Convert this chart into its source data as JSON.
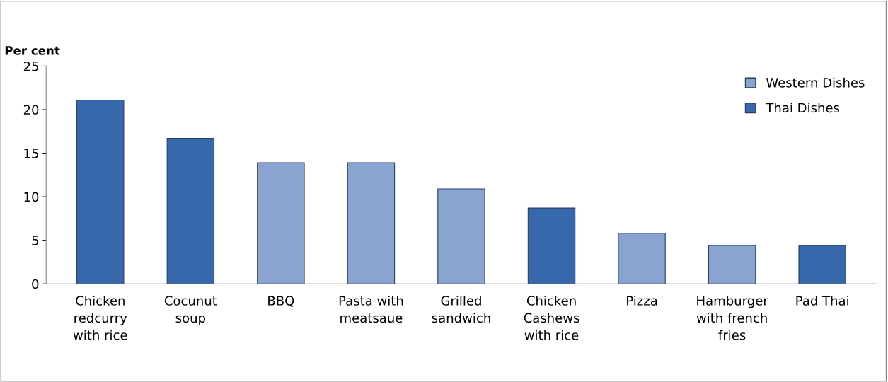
{
  "chart_data": {
    "type": "bar",
    "ylabel": "Per cent",
    "categories": [
      "Chicken redcurry with rice",
      "Cocunut soup",
      "BBQ",
      "Pasta with meatsaue",
      "Grilled sandwich",
      "Chicken Cashews with rice",
      "Pizza",
      "Hamburger with french fries",
      "Pad Thai"
    ],
    "series": [
      {
        "name": "Western Dishes",
        "color": "#8aa4d2",
        "values": [
          null,
          null,
          13.9,
          13.9,
          10.9,
          null,
          5.8,
          4.4,
          null
        ]
      },
      {
        "name": "Thai Dishes",
        "color": "#3768ab",
        "values": [
          21.1,
          16.7,
          null,
          null,
          null,
          8.7,
          null,
          null,
          4.4
        ]
      }
    ],
    "ylim": [
      0,
      25
    ],
    "yticks": [
      0,
      5,
      10,
      15,
      20,
      25
    ],
    "grid": false,
    "legend": "top right"
  }
}
